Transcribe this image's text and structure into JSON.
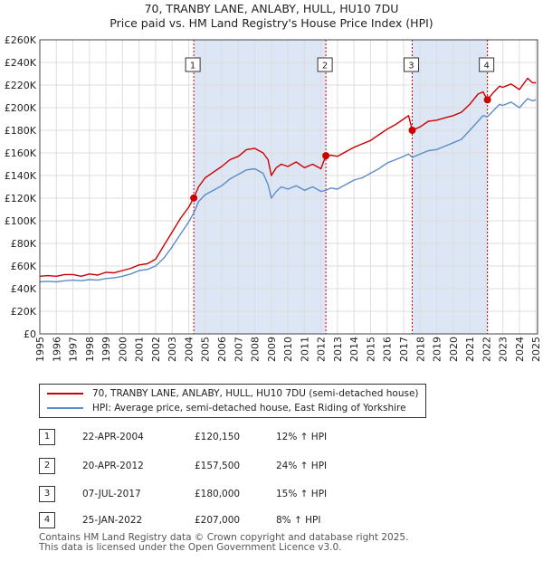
{
  "title": "70, TRANBY LANE, ANLABY, HULL, HU10 7DU",
  "subtitle": "Price paid vs. HM Land Registry's House Price Index (HPI)",
  "legend": {
    "property": "70, TRANBY LANE, ANLABY, HULL, HU10 7DU (semi-detached house)",
    "hpi": "HPI: Average price, semi-detached house, East Riding of Yorkshire"
  },
  "sales": [
    {
      "num": "1",
      "date": "22-APR-2004",
      "price": "£120,150",
      "hpi": "12% ↑ HPI"
    },
    {
      "num": "2",
      "date": "20-APR-2012",
      "price": "£157,500",
      "hpi": "24% ↑ HPI"
    },
    {
      "num": "3",
      "date": "07-JUL-2017",
      "price": "£180,000",
      "hpi": "15% ↑ HPI"
    },
    {
      "num": "4",
      "date": "25-JAN-2022",
      "price": "£207,000",
      "hpi": "8% ↑ HPI"
    }
  ],
  "footer": {
    "line1": "Contains HM Land Registry data © Crown copyright and database right 2025.",
    "line2": "This data is licensed under the Open Government Licence v3.0."
  },
  "colors": {
    "property": "#cc0000",
    "hpi": "#5b8ccc",
    "shade": "#dde6f5",
    "grid": "#dddddd"
  },
  "chart_data": {
    "type": "line",
    "title": "70, TRANBY LANE, ANLABY, HULL, HU10 7DU",
    "subtitle": "Price paid vs. HM Land Registry's House Price Index (HPI)",
    "xlabel": "",
    "ylabel": "",
    "xlim": [
      1995,
      2025.1
    ],
    "ylim": [
      0,
      260000
    ],
    "x_ticks": [
      1995,
      1996,
      1997,
      1998,
      1999,
      2000,
      2001,
      2002,
      2003,
      2004,
      2005,
      2006,
      2007,
      2008,
      2009,
      2010,
      2011,
      2012,
      2013,
      2014,
      2015,
      2016,
      2017,
      2018,
      2019,
      2020,
      2021,
      2022,
      2023,
      2024,
      2025
    ],
    "y_ticks": [
      0,
      20000,
      40000,
      60000,
      80000,
      100000,
      120000,
      140000,
      160000,
      180000,
      200000,
      220000,
      240000,
      260000
    ],
    "y_tick_labels": [
      "£0",
      "£20K",
      "£40K",
      "£60K",
      "£80K",
      "£100K",
      "£120K",
      "£140K",
      "£160K",
      "£180K",
      "£200K",
      "£220K",
      "£240K",
      "£260K"
    ],
    "grid": true,
    "shaded_periods": [
      [
        2004.31,
        2012.3
      ],
      [
        2017.52,
        2022.07
      ]
    ],
    "series": [
      {
        "name": "70, TRANBY LANE, ANLABY, HULL, HU10 7DU (semi-detached house)",
        "x": [
          1995,
          1995.5,
          1996,
          1996.5,
          1997,
          1997.5,
          1998,
          1998.5,
          1999,
          1999.5,
          2000,
          2000.5,
          2001,
          2001.5,
          2002,
          2002.5,
          2003,
          2003.5,
          2004,
          2004.31,
          2004.6,
          2005,
          2005.5,
          2006,
          2006.5,
          2007,
          2007.5,
          2008,
          2008.5,
          2008.8,
          2009,
          2009.3,
          2009.6,
          2010,
          2010.5,
          2011,
          2011.5,
          2012,
          2012.3,
          2012.6,
          2013,
          2013.5,
          2014,
          2014.5,
          2015,
          2015.5,
          2016,
          2016.5,
          2017,
          2017.3,
          2017.52,
          2018,
          2018.5,
          2019,
          2019.5,
          2020,
          2020.5,
          2021,
          2021.5,
          2021.8,
          2022.07,
          2022.4,
          2022.8,
          2023,
          2023.5,
          2024,
          2024.5,
          2024.8,
          2025
        ],
        "values": [
          51000,
          51500,
          51000,
          52500,
          52500,
          51000,
          53000,
          52000,
          54500,
          54000,
          56000,
          58000,
          61000,
          62000,
          66000,
          78000,
          90000,
          102000,
          112000,
          120150,
          130000,
          138000,
          143000,
          148000,
          154000,
          157000,
          163000,
          164000,
          160000,
          154000,
          140000,
          147000,
          150000,
          148000,
          152000,
          147000,
          150000,
          146000,
          157500,
          158000,
          157000,
          161000,
          165000,
          168000,
          171000,
          176000,
          181000,
          185000,
          190000,
          193000,
          180000,
          183000,
          188000,
          189000,
          191000,
          193000,
          196000,
          203000,
          212000,
          214000,
          207000,
          213000,
          219000,
          218000,
          221000,
          216000,
          226000,
          222000,
          222000
        ]
      },
      {
        "name": "HPI: Average price, semi-detached house, East Riding of Yorkshire",
        "x": [
          1995,
          1995.5,
          1996,
          1996.5,
          1997,
          1997.5,
          1998,
          1998.5,
          1999,
          1999.5,
          2000,
          2000.5,
          2001,
          2001.5,
          2002,
          2002.5,
          2003,
          2003.5,
          2004,
          2004.31,
          2004.6,
          2005,
          2005.5,
          2006,
          2006.5,
          2007,
          2007.5,
          2008,
          2008.5,
          2008.8,
          2009,
          2009.3,
          2009.6,
          2010,
          2010.5,
          2011,
          2011.5,
          2012,
          2012.3,
          2012.6,
          2013,
          2013.5,
          2014,
          2014.5,
          2015,
          2015.5,
          2016,
          2016.5,
          2017,
          2017.3,
          2017.52,
          2018,
          2018.5,
          2019,
          2019.5,
          2020,
          2020.5,
          2021,
          2021.5,
          2021.8,
          2022.07,
          2022.4,
          2022.8,
          2023,
          2023.5,
          2024,
          2024.5,
          2024.8,
          2025
        ],
        "values": [
          46000,
          46500,
          46000,
          47000,
          47500,
          47000,
          48000,
          47500,
          49000,
          49500,
          51000,
          53000,
          56000,
          57000,
          60000,
          67000,
          77000,
          88000,
          99000,
          107000,
          117000,
          123000,
          127000,
          131000,
          137000,
          141000,
          145000,
          146000,
          142000,
          132000,
          120000,
          126000,
          130000,
          128000,
          131000,
          127000,
          130000,
          126000,
          127000,
          129000,
          128000,
          132000,
          136000,
          138000,
          142000,
          146000,
          151000,
          154000,
          157000,
          159000,
          156000,
          159000,
          162000,
          163000,
          166000,
          169000,
          172000,
          180000,
          188000,
          193000,
          192000,
          197000,
          203000,
          202000,
          205000,
          200000,
          208000,
          206000,
          207000
        ]
      }
    ],
    "sale_markers": [
      {
        "label": "1",
        "x": 2004.31,
        "y": 120150
      },
      {
        "label": "2",
        "x": 2012.3,
        "y": 157500
      },
      {
        "label": "3",
        "x": 2017.52,
        "y": 180000
      },
      {
        "label": "4",
        "x": 2022.07,
        "y": 207000
      }
    ]
  }
}
